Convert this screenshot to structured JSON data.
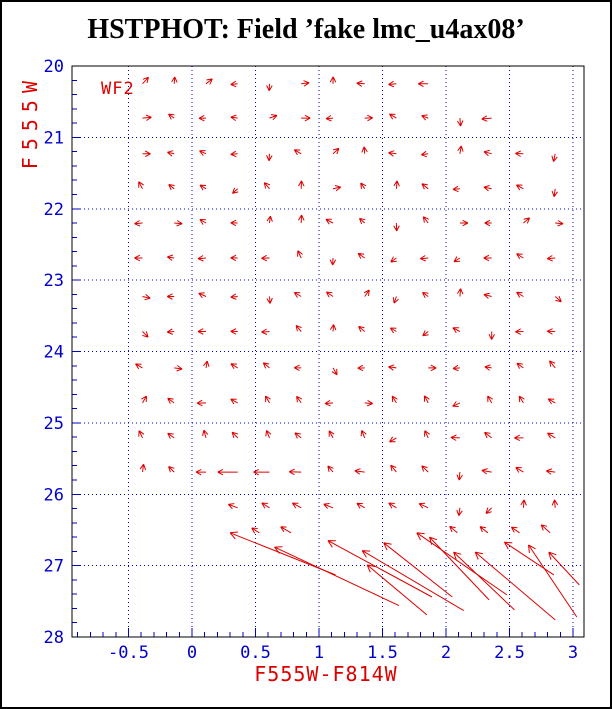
{
  "page": {
    "background": "#ffffff",
    "border_color": "#000000"
  },
  "chart_data": {
    "type": "quiver",
    "title": "HSTPHOT: Field ’fake lmc_u4ax08’",
    "annotation": {
      "text": "WF2"
    },
    "xlabel": "F555W-F814W",
    "ylabel": "F555W",
    "xlim": [
      -0.945,
      3.087
    ],
    "ylim": [
      28,
      20
    ],
    "x_major_ticks": [
      -0.5,
      0,
      0.5,
      1,
      1.5,
      2,
      2.5,
      3
    ],
    "x_tick_labels": [
      "-0.5",
      "0",
      "0.5",
      "1",
      "1.5",
      "2",
      "2.5",
      "3"
    ],
    "y_major_ticks": [
      20,
      21,
      22,
      23,
      24,
      25,
      26,
      27,
      28
    ],
    "y_tick_labels": [
      "20",
      "21",
      "22",
      "23",
      "24",
      "25",
      "26",
      "27",
      "28"
    ],
    "x_minor_step": 0.1,
    "y_minor_step": 0.2,
    "grid": "dotted-at-major-ticks",
    "legend": "none",
    "colors": {
      "frame": "#000000",
      "axis_blue": "#0000cc",
      "data_red": "#dd0000",
      "title": "#000000"
    },
    "small_arrow_format": [
      "x_color",
      "y_mag",
      "direction_deg_screen",
      "length_px"
    ],
    "small_arrows": [
      [
        -0.39,
        20.25,
        48,
        9
      ],
      [
        -0.14,
        20.25,
        85,
        7
      ],
      [
        0.11,
        20.25,
        38,
        8
      ],
      [
        0.36,
        20.25,
        185,
        7
      ],
      [
        0.61,
        20.25,
        268,
        7
      ],
      [
        0.86,
        20.25,
        8,
        8
      ],
      [
        1.11,
        20.25,
        88,
        7
      ],
      [
        1.36,
        20.25,
        175,
        8
      ],
      [
        1.61,
        20.25,
        185,
        8
      ],
      [
        1.86,
        20.25,
        180,
        10
      ],
      [
        -0.39,
        20.73,
        5,
        9
      ],
      [
        -0.14,
        20.73,
        145,
        7
      ],
      [
        0.11,
        20.73,
        182,
        7
      ],
      [
        0.36,
        20.73,
        172,
        7
      ],
      [
        0.61,
        20.73,
        20,
        8
      ],
      [
        0.86,
        20.73,
        0,
        9
      ],
      [
        1.11,
        20.73,
        185,
        7
      ],
      [
        1.36,
        20.73,
        2,
        8
      ],
      [
        1.61,
        20.73,
        150,
        8
      ],
      [
        1.86,
        20.73,
        160,
        7
      ],
      [
        2.11,
        20.73,
        275,
        8
      ],
      [
        2.36,
        20.73,
        185,
        10
      ],
      [
        -0.39,
        21.23,
        0,
        8
      ],
      [
        -0.14,
        21.23,
        168,
        7
      ],
      [
        0.11,
        21.23,
        155,
        7
      ],
      [
        0.36,
        21.23,
        185,
        7
      ],
      [
        0.61,
        21.23,
        265,
        7
      ],
      [
        0.86,
        21.23,
        150,
        8
      ],
      [
        1.11,
        21.23,
        42,
        8
      ],
      [
        1.36,
        21.23,
        95,
        7
      ],
      [
        1.61,
        21.23,
        172,
        8
      ],
      [
        1.86,
        21.23,
        188,
        7
      ],
      [
        2.11,
        21.23,
        80,
        8
      ],
      [
        2.36,
        21.23,
        165,
        8
      ],
      [
        2.61,
        21.23,
        178,
        8
      ],
      [
        2.86,
        21.23,
        258,
        8
      ],
      [
        -0.39,
        21.72,
        118,
        8
      ],
      [
        -0.14,
        21.72,
        142,
        7
      ],
      [
        0.11,
        21.72,
        148,
        7
      ],
      [
        0.36,
        21.72,
        222,
        7
      ],
      [
        0.61,
        21.72,
        130,
        8
      ],
      [
        0.86,
        21.72,
        88,
        8
      ],
      [
        1.11,
        21.72,
        12,
        8
      ],
      [
        1.36,
        21.72,
        125,
        7
      ],
      [
        1.61,
        21.72,
        85,
        8
      ],
      [
        1.86,
        21.72,
        142,
        8
      ],
      [
        2.11,
        21.72,
        185,
        7
      ],
      [
        2.36,
        21.72,
        168,
        8
      ],
      [
        2.61,
        21.72,
        152,
        8
      ],
      [
        2.86,
        21.72,
        262,
        8
      ],
      [
        -0.39,
        22.2,
        185,
        8
      ],
      [
        -0.14,
        22.2,
        355,
        8
      ],
      [
        0.11,
        22.2,
        150,
        7
      ],
      [
        0.36,
        22.2,
        178,
        7
      ],
      [
        0.61,
        22.2,
        82,
        7
      ],
      [
        0.86,
        22.2,
        88,
        8
      ],
      [
        1.11,
        22.2,
        152,
        8
      ],
      [
        1.36,
        22.2,
        138,
        7
      ],
      [
        1.61,
        22.2,
        272,
        8
      ],
      [
        1.86,
        22.2,
        128,
        8
      ],
      [
        2.11,
        22.2,
        0,
        8
      ],
      [
        2.36,
        22.2,
        180,
        7
      ],
      [
        2.61,
        22.2,
        40,
        8
      ],
      [
        2.86,
        22.2,
        355,
        8
      ],
      [
        -0.39,
        22.69,
        180,
        8
      ],
      [
        -0.14,
        22.69,
        172,
        7
      ],
      [
        0.11,
        22.69,
        185,
        8
      ],
      [
        0.36,
        22.69,
        178,
        7
      ],
      [
        0.61,
        22.69,
        182,
        8
      ],
      [
        0.86,
        22.69,
        115,
        8
      ],
      [
        1.11,
        22.69,
        268,
        7
      ],
      [
        1.36,
        22.69,
        145,
        8
      ],
      [
        1.61,
        22.69,
        215,
        7
      ],
      [
        1.86,
        22.69,
        185,
        8
      ],
      [
        2.11,
        22.69,
        212,
        7
      ],
      [
        2.36,
        22.69,
        180,
        8
      ],
      [
        2.61,
        22.69,
        148,
        8
      ],
      [
        2.86,
        22.69,
        185,
        8
      ],
      [
        -0.39,
        23.23,
        348,
        8
      ],
      [
        -0.14,
        23.23,
        180,
        7
      ],
      [
        0.11,
        23.23,
        155,
        8
      ],
      [
        0.36,
        23.23,
        185,
        7
      ],
      [
        0.61,
        23.23,
        275,
        7
      ],
      [
        0.86,
        23.23,
        150,
        8
      ],
      [
        1.11,
        23.23,
        145,
        8
      ],
      [
        1.36,
        23.23,
        55,
        8
      ],
      [
        1.61,
        23.23,
        250,
        7
      ],
      [
        1.86,
        23.23,
        145,
        7
      ],
      [
        2.11,
        23.23,
        85,
        8
      ],
      [
        2.36,
        23.23,
        165,
        8
      ],
      [
        2.61,
        23.23,
        148,
        8
      ],
      [
        2.86,
        23.23,
        320,
        8
      ],
      [
        -0.39,
        23.72,
        315,
        8
      ],
      [
        -0.14,
        23.72,
        185,
        7
      ],
      [
        0.11,
        23.72,
        180,
        8
      ],
      [
        0.36,
        23.72,
        178,
        7
      ],
      [
        0.61,
        23.72,
        185,
        8
      ],
      [
        0.86,
        23.72,
        130,
        8
      ],
      [
        1.11,
        23.72,
        85,
        7
      ],
      [
        1.36,
        23.72,
        140,
        8
      ],
      [
        1.61,
        23.72,
        150,
        7
      ],
      [
        1.86,
        23.72,
        218,
        7
      ],
      [
        2.11,
        23.72,
        152,
        8
      ],
      [
        2.36,
        23.72,
        270,
        8
      ],
      [
        2.61,
        23.72,
        182,
        8
      ],
      [
        2.86,
        23.72,
        178,
        8
      ],
      [
        -0.39,
        24.23,
        150,
        8
      ],
      [
        -0.14,
        24.23,
        352,
        8
      ],
      [
        0.11,
        24.23,
        80,
        7
      ],
      [
        0.36,
        24.23,
        148,
        8
      ],
      [
        0.61,
        24.23,
        140,
        8
      ],
      [
        0.86,
        24.23,
        178,
        7
      ],
      [
        1.11,
        24.23,
        300,
        8
      ],
      [
        1.36,
        24.23,
        182,
        7
      ],
      [
        1.61,
        24.23,
        172,
        8
      ],
      [
        1.86,
        24.23,
        0,
        8
      ],
      [
        2.11,
        24.23,
        185,
        7
      ],
      [
        2.36,
        24.23,
        172,
        7
      ],
      [
        2.61,
        24.23,
        145,
        8
      ],
      [
        2.86,
        24.23,
        128,
        9
      ],
      [
        -0.39,
        24.72,
        60,
        8
      ],
      [
        -0.14,
        24.72,
        145,
        8
      ],
      [
        0.11,
        24.72,
        182,
        9
      ],
      [
        0.36,
        24.72,
        152,
        8
      ],
      [
        0.61,
        24.72,
        120,
        8
      ],
      [
        0.86,
        24.72,
        125,
        8
      ],
      [
        1.11,
        24.72,
        185,
        8
      ],
      [
        1.36,
        24.72,
        355,
        8
      ],
      [
        1.61,
        24.72,
        122,
        8
      ],
      [
        1.86,
        24.72,
        118,
        8
      ],
      [
        2.11,
        24.72,
        205,
        8
      ],
      [
        2.36,
        24.72,
        120,
        8
      ],
      [
        2.61,
        24.72,
        122,
        8
      ],
      [
        2.86,
        24.72,
        150,
        8
      ],
      [
        -0.39,
        25.21,
        115,
        8
      ],
      [
        -0.14,
        25.21,
        145,
        8
      ],
      [
        0.11,
        25.21,
        105,
        8
      ],
      [
        0.36,
        25.21,
        135,
        8
      ],
      [
        0.61,
        25.21,
        112,
        8
      ],
      [
        0.86,
        25.21,
        142,
        8
      ],
      [
        1.11,
        25.21,
        118,
        8
      ],
      [
        1.36,
        25.21,
        112,
        8
      ],
      [
        1.61,
        25.21,
        210,
        8
      ],
      [
        1.86,
        25.21,
        115,
        8
      ],
      [
        2.11,
        25.21,
        178,
        9
      ],
      [
        2.36,
        25.21,
        143,
        9
      ],
      [
        2.61,
        25.21,
        180,
        9
      ],
      [
        2.86,
        25.21,
        148,
        9
      ],
      [
        -0.39,
        25.69,
        82,
        8
      ],
      [
        -0.14,
        25.69,
        135,
        8
      ],
      [
        0.11,
        25.69,
        180,
        10
      ],
      [
        0.36,
        25.69,
        180,
        20
      ],
      [
        0.61,
        25.69,
        180,
        16
      ],
      [
        0.86,
        25.69,
        178,
        12
      ],
      [
        1.11,
        25.69,
        130,
        8
      ],
      [
        1.36,
        25.69,
        172,
        10
      ],
      [
        1.61,
        25.69,
        130,
        9
      ],
      [
        1.86,
        25.69,
        135,
        9
      ],
      [
        2.11,
        25.69,
        265,
        8
      ],
      [
        2.36,
        25.69,
        170,
        10
      ],
      [
        2.61,
        25.69,
        148,
        9
      ],
      [
        2.86,
        25.69,
        172,
        9
      ],
      [
        0.36,
        26.19,
        160,
        10
      ],
      [
        0.61,
        26.19,
        148,
        9
      ],
      [
        0.86,
        26.19,
        152,
        10
      ],
      [
        1.11,
        26.19,
        158,
        10
      ],
      [
        1.36,
        26.19,
        150,
        9
      ],
      [
        1.61,
        26.19,
        148,
        9
      ],
      [
        1.86,
        26.19,
        155,
        10
      ],
      [
        2.11,
        26.19,
        262,
        8
      ],
      [
        2.36,
        26.19,
        225,
        8
      ],
      [
        2.61,
        26.19,
        85,
        8
      ],
      [
        2.86,
        26.19,
        95,
        8
      ],
      [
        0.53,
        26.54,
        148,
        9
      ],
      [
        0.78,
        26.54,
        150,
        12
      ],
      [
        2.09,
        26.54,
        140,
        10
      ],
      [
        2.33,
        26.54,
        142,
        10
      ],
      [
        2.58,
        26.54,
        145,
        10
      ],
      [
        2.82,
        26.54,
        138,
        12
      ]
    ],
    "long_arrow_format": [
      "head_x_color",
      "head_y_mag",
      "tail_x_color",
      "tail_y_mag"
    ],
    "long_arrows": [
      [
        0.3,
        26.54,
        1.13,
        27.13
      ],
      [
        0.65,
        26.74,
        1.63,
        27.56
      ],
      [
        1.07,
        26.65,
        1.89,
        27.44
      ],
      [
        1.34,
        26.79,
        2.14,
        27.63
      ],
      [
        1.38,
        26.99,
        1.85,
        27.69
      ],
      [
        1.51,
        26.68,
        2.05,
        27.44
      ],
      [
        1.77,
        26.54,
        2.48,
        27.41
      ],
      [
        1.87,
        26.6,
        2.34,
        27.48
      ],
      [
        2.06,
        26.81,
        2.54,
        27.62
      ],
      [
        2.23,
        26.81,
        2.86,
        27.76
      ],
      [
        2.46,
        26.67,
        2.85,
        27.13
      ],
      [
        2.65,
        26.71,
        3.03,
        27.72
      ],
      [
        2.81,
        26.81,
        3.05,
        27.27
      ]
    ]
  }
}
